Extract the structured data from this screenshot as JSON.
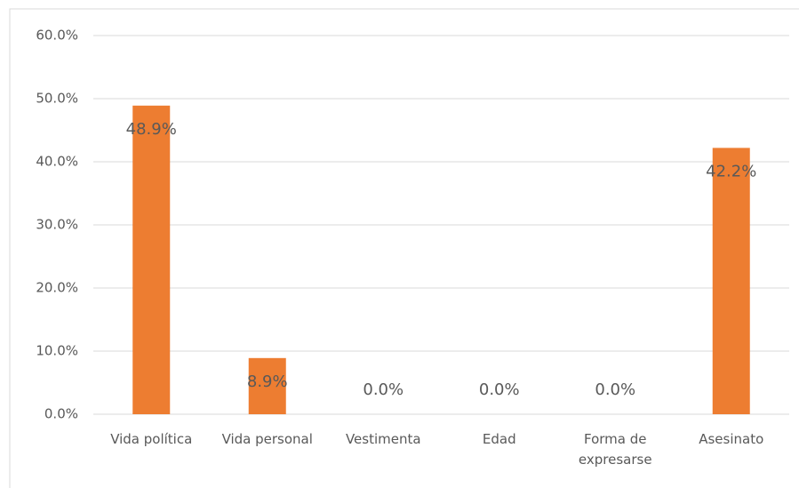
{
  "chart_data": {
    "type": "bar",
    "categories": [
      "Vida política",
      "Vida personal",
      "Vestimenta",
      "Edad",
      "Forma de expresarse",
      "Asesinato"
    ],
    "values": [
      48.9,
      8.9,
      0,
      0,
      0,
      42.2
    ],
    "value_labels": [
      "48.9%",
      "8.9%",
      "0.0%",
      "0.0%",
      "0.0%",
      "42.2%"
    ],
    "color": "#ed7d31",
    "ylim": [
      0,
      60
    ],
    "yticks": [
      {
        "value": 0,
        "label": "0.0%"
      },
      {
        "value": 10,
        "label": "10.0%"
      },
      {
        "value": 20,
        "label": "20.0%"
      },
      {
        "value": 30,
        "label": "30.0%"
      },
      {
        "value": 40,
        "label": "40.0%"
      },
      {
        "value": 50,
        "label": "50.0%"
      },
      {
        "value": 60,
        "label": "60.0%"
      }
    ],
    "grid": true
  }
}
